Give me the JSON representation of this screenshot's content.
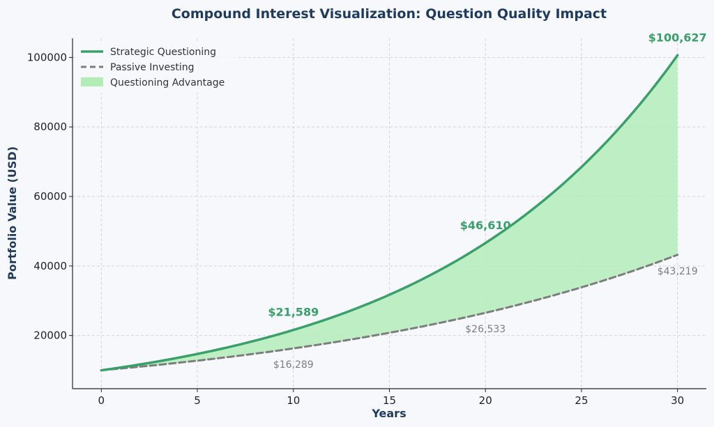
{
  "chart_data": {
    "type": "line",
    "title": "Compound Interest Visualization: Question Quality Impact",
    "xlabel": "Years",
    "ylabel": "Portfolio Value (USD)",
    "xlim": [
      -1.5,
      31.5
    ],
    "ylim": [
      4700,
      105500
    ],
    "x_ticks": [
      0,
      5,
      10,
      15,
      20,
      25,
      30
    ],
    "y_ticks": [
      20000,
      40000,
      60000,
      80000,
      100000
    ],
    "x_tick_labels": [
      "0",
      "5",
      "10",
      "15",
      "20",
      "25",
      "30"
    ],
    "y_tick_labels": [
      "20000",
      "40000",
      "60000",
      "80000",
      "100000"
    ],
    "grid": true,
    "legend_position": "top-left",
    "x": [
      0,
      5,
      10,
      15,
      20,
      25,
      30
    ],
    "series": [
      {
        "name": "Strategic Questioning",
        "style": "solid",
        "color": "#3aa06a",
        "start": 10000,
        "annual_rate": 0.08,
        "values": [
          10000,
          14693,
          21589,
          31722,
          46610,
          68485,
          100627
        ]
      },
      {
        "name": "Passive Investing",
        "style": "dashed",
        "color": "#7d7d7d",
        "start": 10000,
        "annual_rate": 0.05,
        "values": [
          10000,
          12763,
          16289,
          20789,
          26533,
          33864,
          43219
        ]
      }
    ],
    "fill": {
      "name": "Questioning Advantage",
      "color": "#b4ecb8"
    },
    "annotations": [
      {
        "x": 10,
        "y": 21589,
        "text": "$21,589",
        "series": 0
      },
      {
        "x": 20,
        "y": 46610,
        "text": "$46,610",
        "series": 0
      },
      {
        "x": 30,
        "y": 100627,
        "text": "$100,627",
        "series": 0
      },
      {
        "x": 10,
        "y": 16289,
        "text": "$16,289",
        "series": 1
      },
      {
        "x": 20,
        "y": 26533,
        "text": "$26,533",
        "series": 1
      },
      {
        "x": 30,
        "y": 43219,
        "text": "$43,219",
        "series": 1
      }
    ]
  },
  "colors": {
    "background": "#f6f8fb",
    "title": "#1f3a5f",
    "grid": "#cfd6de",
    "axis": "#222222",
    "strategic": "#3aa06a",
    "passive": "#7d7d7d",
    "advantage": "#b4ecb8"
  }
}
